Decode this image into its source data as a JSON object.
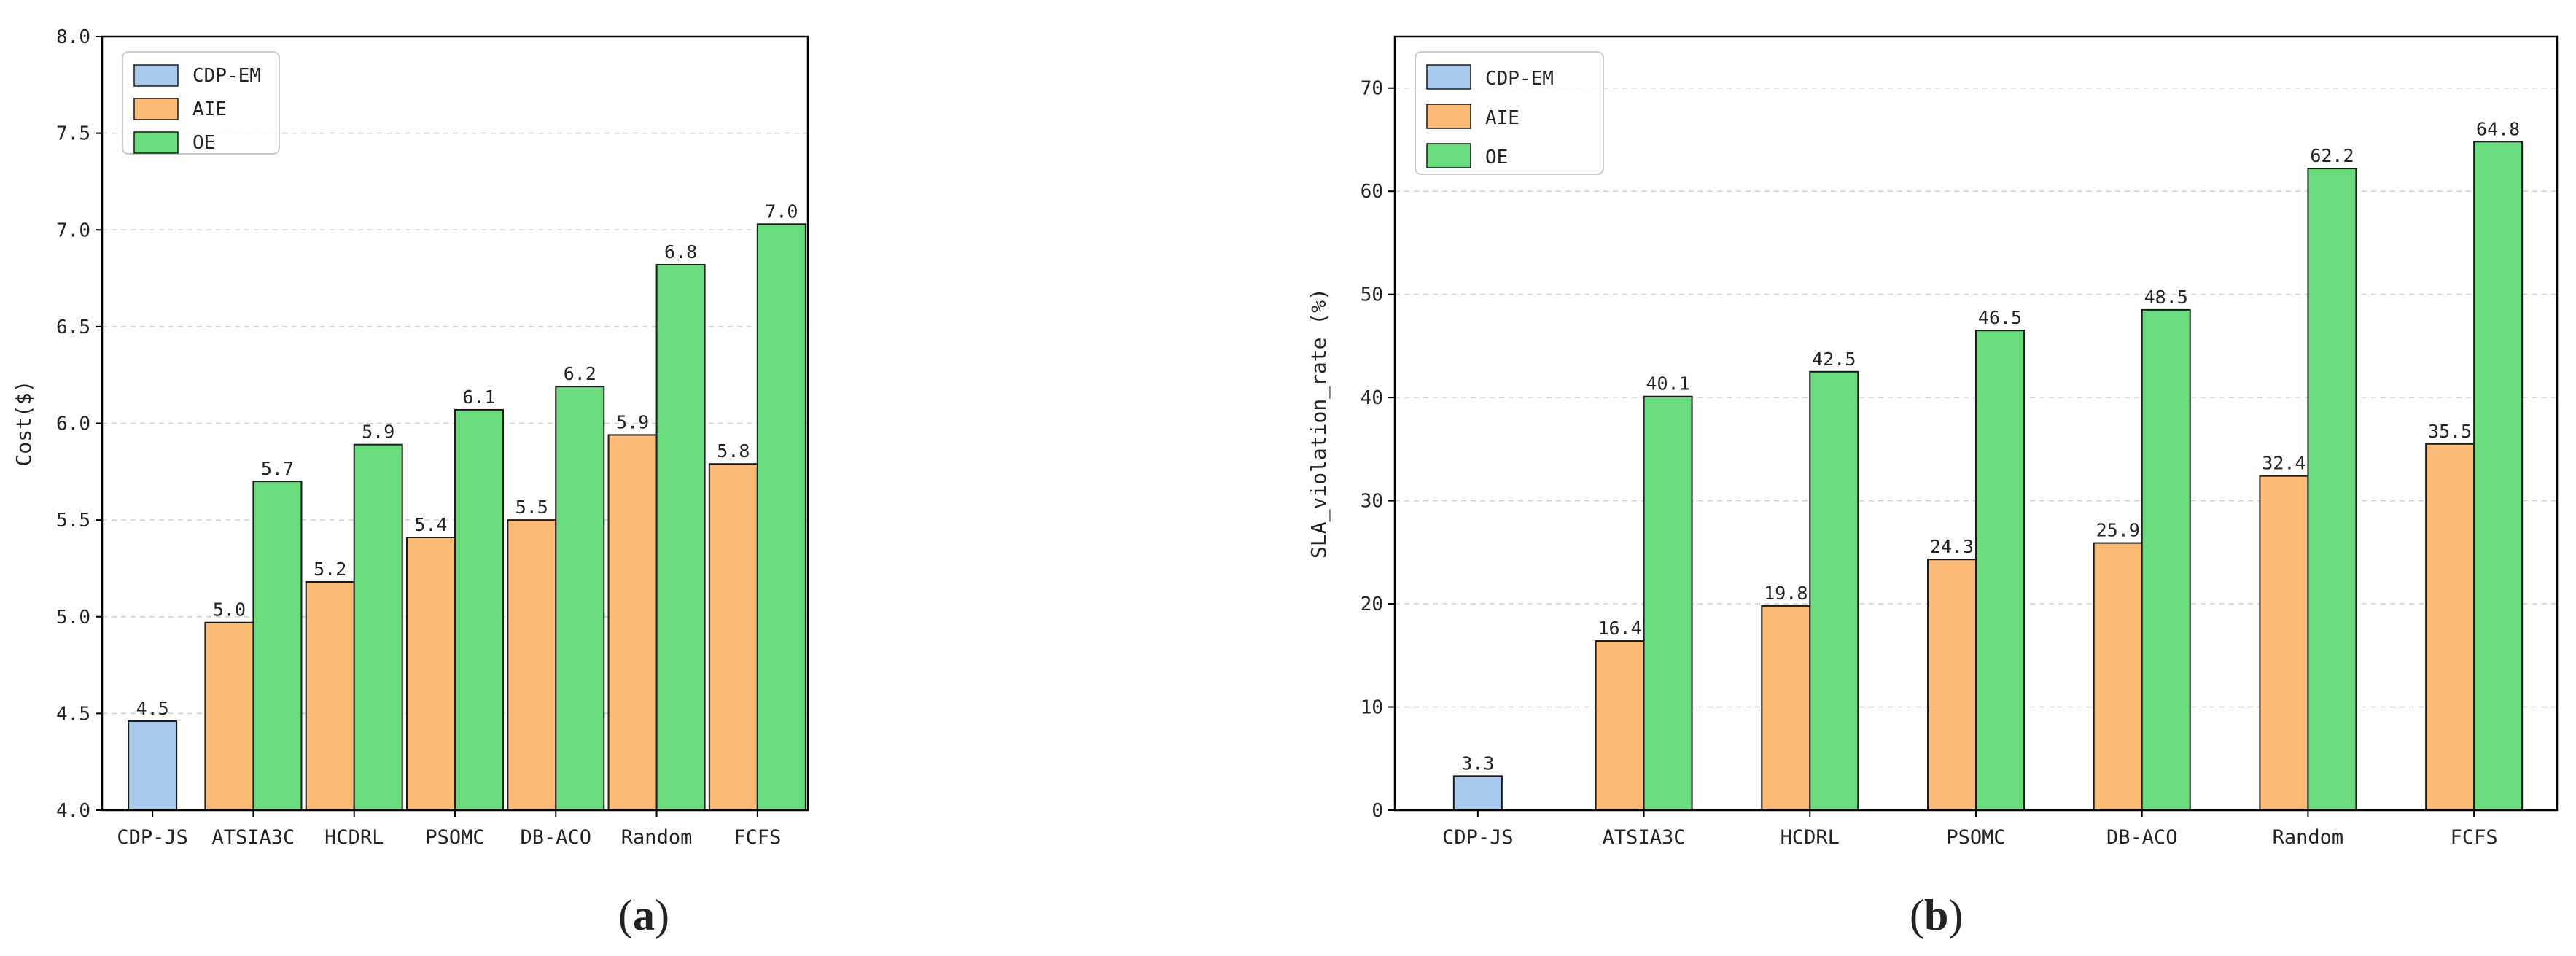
{
  "chart_data": [
    {
      "type": "bar",
      "caption_letter": "a",
      "categories": [
        "CDP-JS",
        "ATSIA3C",
        "HCDRL",
        "PSOMC",
        "DB-ACO",
        "Random",
        "FCFS"
      ],
      "series": [
        {
          "name": "CDP-EM",
          "color": "#a8c8ec",
          "values": [
            4.46,
            null,
            null,
            null,
            null,
            null,
            null
          ],
          "labels": [
            "4.5",
            null,
            null,
            null,
            null,
            null,
            null
          ]
        },
        {
          "name": "AIE",
          "color": "#fdbb78",
          "values": [
            null,
            4.97,
            5.18,
            5.41,
            5.5,
            5.94,
            5.79
          ],
          "labels": [
            null,
            "5.0",
            "5.2",
            "5.4",
            "5.5",
            "5.9",
            "5.8"
          ]
        },
        {
          "name": "OE",
          "color": "#6adc7e",
          "values": [
            null,
            5.7,
            5.89,
            6.07,
            6.19,
            6.82,
            7.03
          ],
          "labels": [
            null,
            "5.7",
            "5.9",
            "6.1",
            "6.2",
            "6.8",
            "7.0"
          ]
        }
      ],
      "ylabel": "Cost($)",
      "ylim": [
        4.0,
        8.0
      ],
      "yticks": [
        4.0,
        4.5,
        5.0,
        5.5,
        6.0,
        6.5,
        7.0,
        7.5,
        8.0
      ],
      "ytick_labels": [
        "4.0",
        "4.5",
        "5.0",
        "5.5",
        "6.0",
        "6.5",
        "7.0",
        "7.5",
        "8.0"
      ],
      "grid": true,
      "legend": "top-left"
    },
    {
      "type": "bar",
      "caption_letter": "b",
      "categories": [
        "CDP-JS",
        "ATSIA3C",
        "HCDRL",
        "PSOMC",
        "DB-ACO",
        "Random",
        "FCFS"
      ],
      "series": [
        {
          "name": "CDP-EM",
          "color": "#a8c8ec",
          "values": [
            3.3,
            null,
            null,
            null,
            null,
            null,
            null
          ],
          "labels": [
            "3.3",
            null,
            null,
            null,
            null,
            null,
            null
          ]
        },
        {
          "name": "AIE",
          "color": "#fdbb78",
          "values": [
            null,
            16.4,
            19.8,
            24.3,
            25.9,
            32.4,
            35.5
          ],
          "labels": [
            null,
            "16.4",
            "19.8",
            "24.3",
            "25.9",
            "32.4",
            "35.5"
          ]
        },
        {
          "name": "OE",
          "color": "#6adc7e",
          "values": [
            null,
            40.1,
            42.5,
            46.5,
            48.5,
            62.2,
            64.8
          ],
          "labels": [
            null,
            "40.1",
            "42.5",
            "46.5",
            "48.5",
            "62.2",
            "64.8"
          ]
        }
      ],
      "ylabel": "SLA_violation_rate (%)",
      "ylim": [
        0,
        75
      ],
      "yticks": [
        0,
        10,
        20,
        30,
        40,
        50,
        60,
        70
      ],
      "ytick_labels": [
        "0",
        "10",
        "20",
        "30",
        "40",
        "50",
        "60",
        "70"
      ],
      "grid": true,
      "legend": "top-left"
    }
  ]
}
